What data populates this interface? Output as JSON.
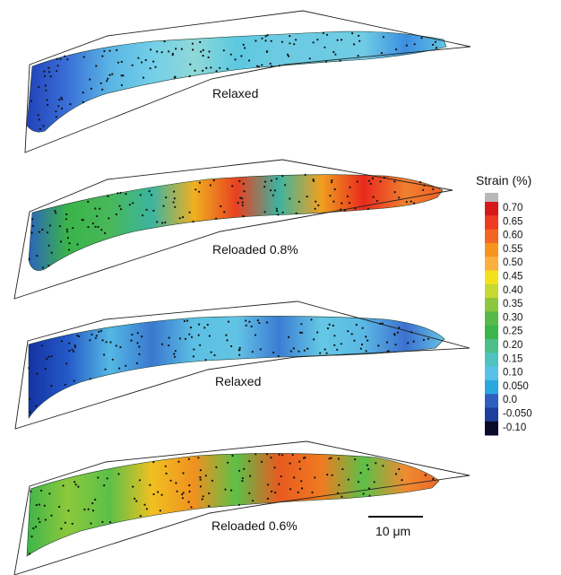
{
  "panels": [
    {
      "label": "Relaxed",
      "stops": [
        "#2040b8",
        "#3a70d8",
        "#5ab4e4",
        "#72cfe8",
        "#8fd8d8",
        "#5cc8e0",
        "#6ccbe2",
        "#6ccbe2",
        "#70cce4",
        "#3c8ee0",
        "#64c8e4"
      ]
    },
    {
      "label": "Reloaded 0.8%",
      "stops": [
        "#2a5cc8",
        "#3ab44a",
        "#48b858",
        "#3cb4a0",
        "#f0b020",
        "#e84020",
        "#3cb4a0",
        "#f0a020",
        "#e82a1c",
        "#f08030",
        "#f05a20"
      ]
    },
    {
      "label": "Relaxed",
      "stops": [
        "#1430a0",
        "#2458c8",
        "#54b8e4",
        "#3a78d0",
        "#5cc0e4",
        "#62c4e4",
        "#3c7cd4",
        "#64c8e4",
        "#5ab8e4",
        "#3c70d0",
        "#68cce8"
      ]
    },
    {
      "label": "Reloaded 0.6%",
      "stops": [
        "#3ab44a",
        "#8cc83c",
        "#5cc048",
        "#f0c020",
        "#f09020",
        "#5cc048",
        "#e85a20",
        "#f07a20",
        "#5cc048",
        "#f08a30",
        "#e86024"
      ]
    }
  ],
  "legend": {
    "title": "Strain (%)",
    "ticks": [
      "0.70",
      "0.65",
      "0.60",
      "0.55",
      "0.50",
      "0.45",
      "0.40",
      "0.35",
      "0.30",
      "0.25",
      "0.20",
      "0.15",
      "0.10",
      "0.050",
      "0.0",
      "-0.050",
      "-0.10"
    ],
    "colors": [
      "#d7191c",
      "#ef3b22",
      "#f26522",
      "#f7941d",
      "#fbb040",
      "#f5e11b",
      "#c6d932",
      "#8dc63f",
      "#57b947",
      "#39b54a",
      "#4cbf8b",
      "#4fc3c0",
      "#59c1e8",
      "#29a8e0",
      "#2e5fbf",
      "#1c3f9e",
      "#0a0a2a"
    ],
    "top_color": "#b8b8b8"
  },
  "scale_bar": {
    "label": "10 μm"
  }
}
